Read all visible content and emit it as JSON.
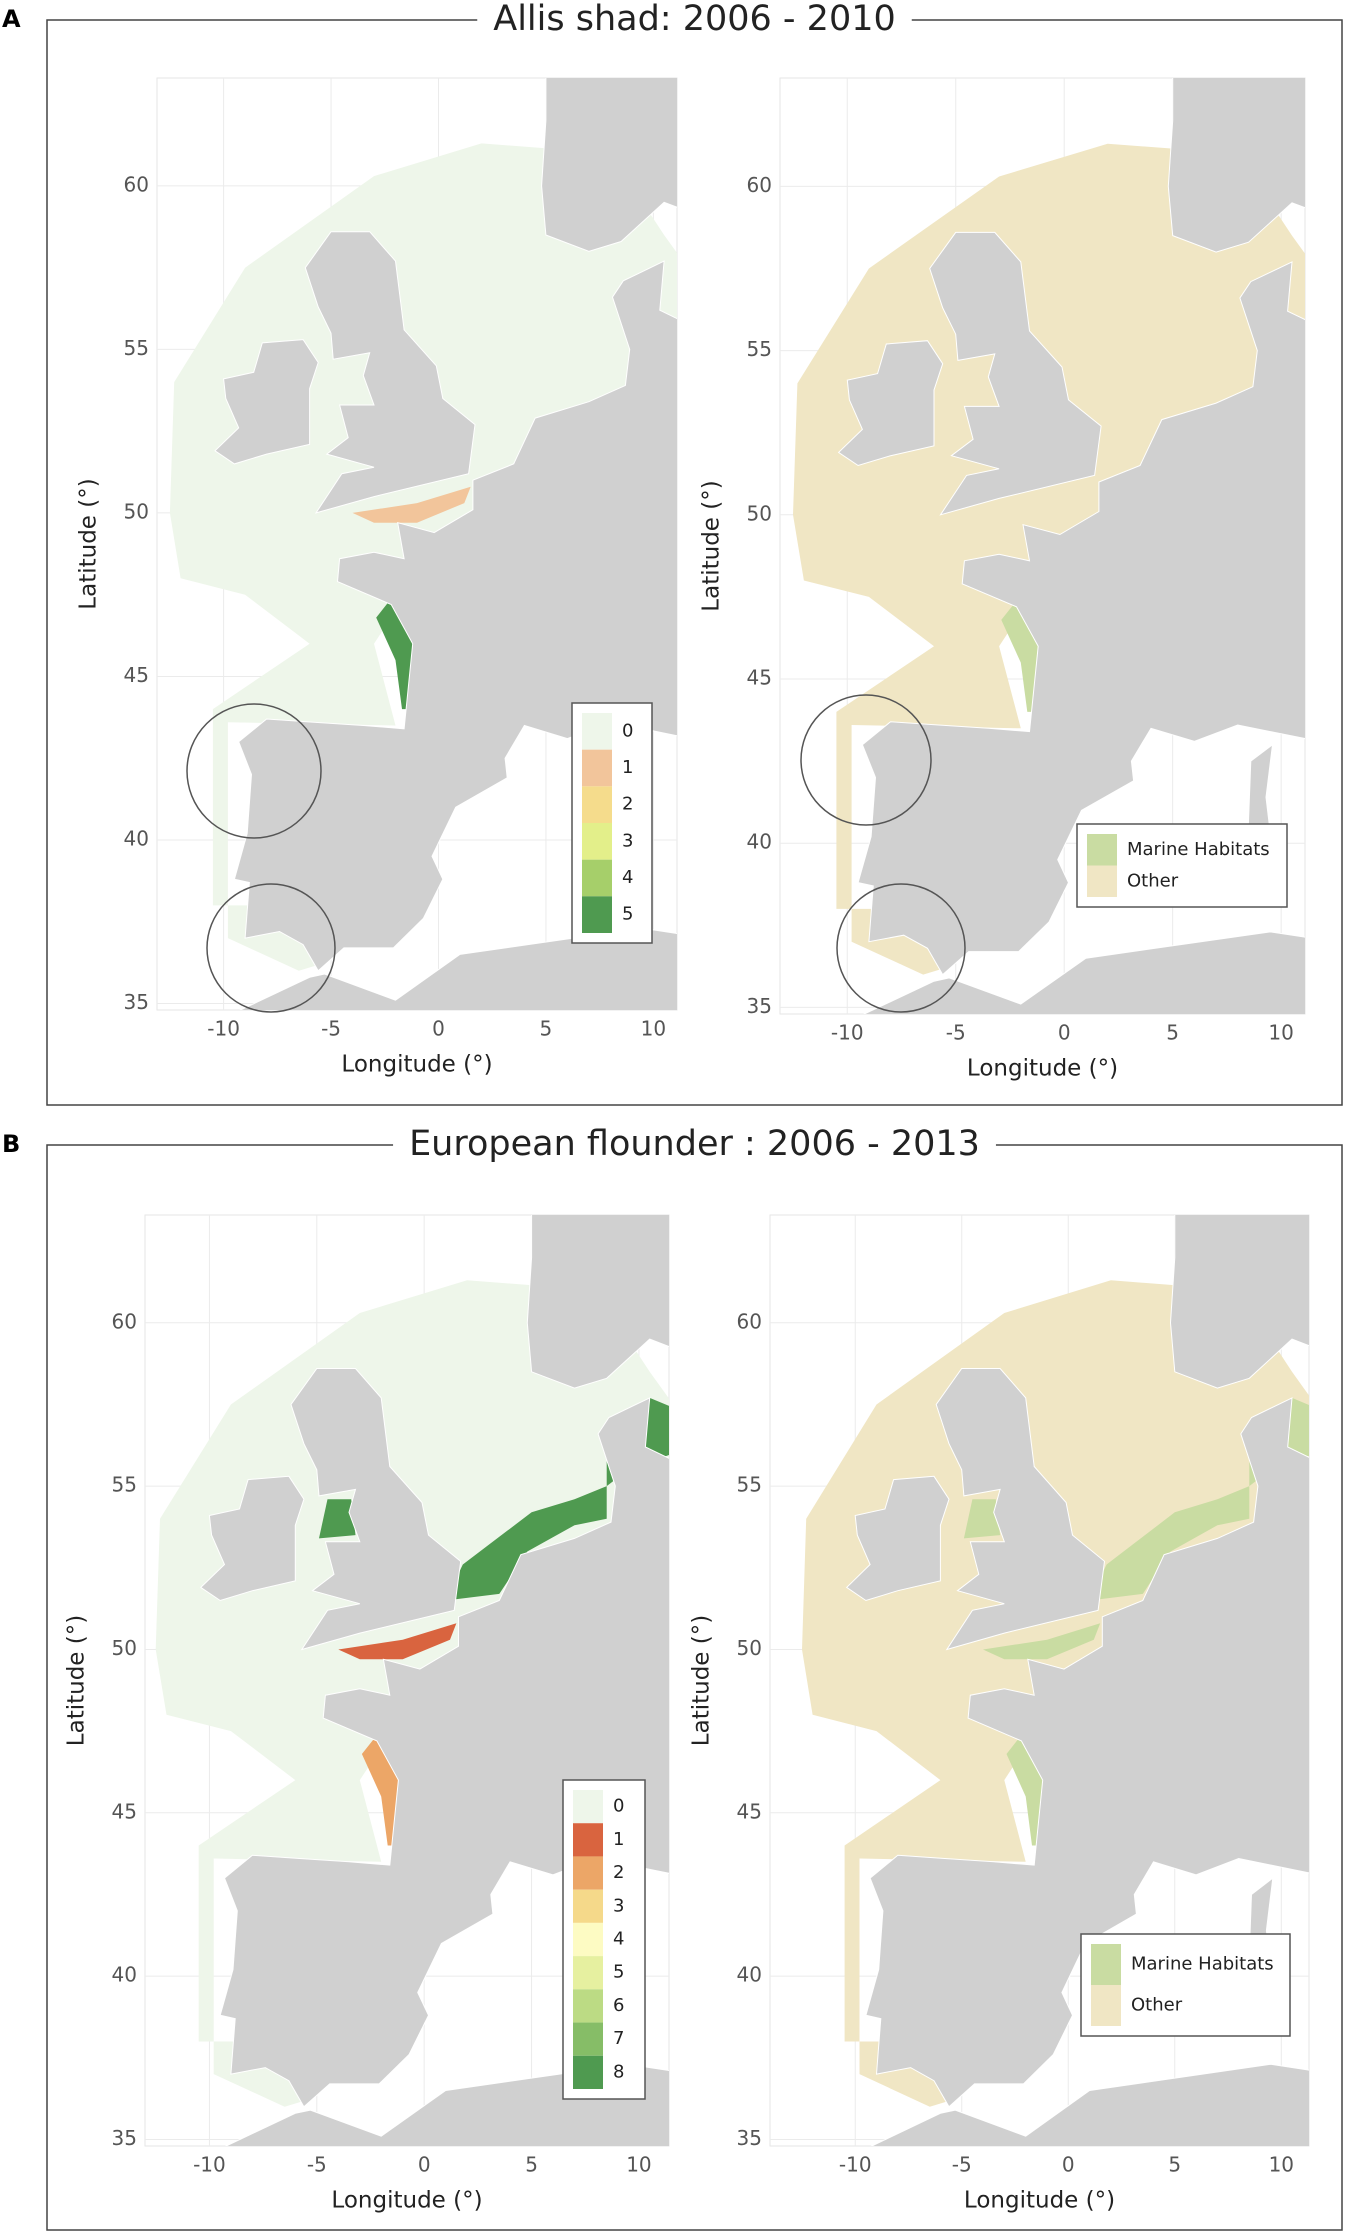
{
  "panels": [
    {
      "label": "A",
      "title": "Allis shad: 2006 - 2010",
      "maps": [
        {
          "xlabel": "Longitude (°)",
          "ylabel": "Latitude (°)",
          "xlim": [
            -13.1,
            11.1
          ],
          "ylim": [
            34.8,
            63.3
          ],
          "xticks": [
            -10,
            -5,
            0,
            5,
            10
          ],
          "yticks": [
            35,
            40,
            45,
            50,
            55,
            60
          ],
          "legend": {
            "items": [
              {
                "label": 0,
                "color": "#eef6ea"
              },
              {
                "label": 1,
                "color": "#f2c59b"
              },
              {
                "label": 2,
                "color": "#f5dc8c"
              },
              {
                "label": 3,
                "color": "#e3ef8a"
              },
              {
                "label": 4,
                "color": "#a6cf6a"
              },
              {
                "label": 5,
                "color": "#4f9a50"
              }
            ]
          }
        },
        {
          "xlabel": "Longitude (°)",
          "ylabel": "Latitude (°)",
          "xlim": [
            -13.1,
            11.1
          ],
          "ylim": [
            34.8,
            63.3
          ],
          "xticks": [
            -10,
            -5,
            0,
            5,
            10
          ],
          "yticks": [
            35,
            40,
            45,
            50,
            55,
            60
          ],
          "legend": {
            "items": [
              {
                "label": "Marine Habitats",
                "color": "#c9dca2"
              },
              {
                "label": "Other",
                "color": "#f0e6c4"
              }
            ]
          }
        }
      ]
    },
    {
      "label": "B",
      "title": "European flounder : 2006 - 2013",
      "maps": [
        {
          "xlabel": "Longitude (°)",
          "ylabel": "Latitude (°)",
          "xlim": [
            -13.0,
            11.4
          ],
          "ylim": [
            34.8,
            63.3
          ],
          "xticks": [
            -10,
            -5,
            0,
            5,
            10
          ],
          "yticks": [
            35,
            40,
            45,
            50,
            55,
            60
          ],
          "legend": {
            "items": [
              {
                "label": 0,
                "color": "#eef6ea"
              },
              {
                "label": 1,
                "color": "#d9643f"
              },
              {
                "label": 2,
                "color": "#eca667"
              },
              {
                "label": 3,
                "color": "#f5d98a"
              },
              {
                "label": 4,
                "color": "#fdfbc3"
              },
              {
                "label": 5,
                "color": "#e6f0a0"
              },
              {
                "label": 6,
                "color": "#bcdb84"
              },
              {
                "label": 7,
                "color": "#86bd67"
              },
              {
                "label": 8,
                "color": "#4f9a50"
              }
            ]
          }
        },
        {
          "xlabel": "Longitude (°)",
          "ylabel": "Latitude (°)",
          "xlim": [
            -14.0,
            11.3
          ],
          "ylim": [
            34.8,
            63.3
          ],
          "xticks": [
            -10,
            -5,
            0,
            5,
            10
          ],
          "yticks": [
            35,
            40,
            45,
            50,
            55,
            60
          ],
          "legend": {
            "items": [
              {
                "label": "Marine Habitats",
                "color": "#c9dca2"
              },
              {
                "label": "Other",
                "color": "#f0e6c4"
              }
            ]
          }
        }
      ]
    }
  ]
}
